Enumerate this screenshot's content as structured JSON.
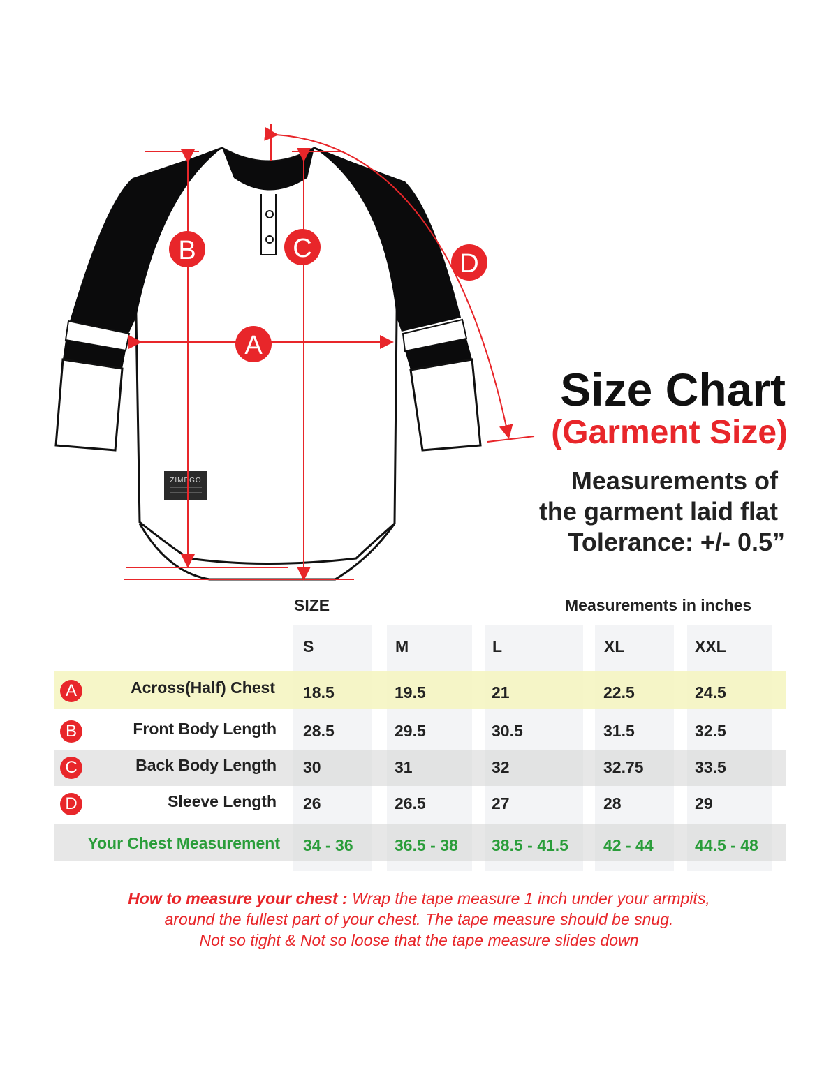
{
  "header": {
    "title": "Size Chart",
    "subtitle": "(Garment Size)",
    "notes": [
      "Measurements of",
      "the garment laid flat",
      "Tolerance: +/- 0.5”"
    ]
  },
  "diagram": {
    "labels": [
      "A",
      "B",
      "C",
      "D"
    ],
    "brand_tag": "ZIMEGO",
    "arrow_color": "#e8262a"
  },
  "table": {
    "size_label": "SIZE",
    "unit_label": "Measurements in inches",
    "sizes": [
      "S",
      "M",
      "L",
      "XL",
      "XXL"
    ],
    "rows": [
      {
        "badge": "A",
        "label": "Across(Half) Chest",
        "values": [
          "18.5",
          "19.5",
          "21",
          "22.5",
          "24.5"
        ]
      },
      {
        "badge": "B",
        "label": "Front Body Length",
        "values": [
          "28.5",
          "29.5",
          "30.5",
          "31.5",
          "32.5"
        ]
      },
      {
        "badge": "C",
        "label": "Back Body Length",
        "values": [
          "30",
          "31",
          "32",
          "32.75",
          "33.5"
        ]
      },
      {
        "badge": "D",
        "label": "Sleeve Length",
        "values": [
          "26",
          "26.5",
          "27",
          "28",
          "29"
        ]
      }
    ],
    "chest": {
      "label": "Your Chest Measurement",
      "values": [
        "34 - 36",
        "36.5 - 38",
        "38.5 - 41.5",
        "42 - 44",
        "44.5 - 48"
      ]
    }
  },
  "howto": {
    "lead": "How to measure your chest :",
    "lines": [
      " Wrap the tape measure 1 inch under your armpits,",
      "around the fullest part of your chest. The tape measure should be snug.",
      "Not so tight & Not so loose that the tape measure slides down"
    ]
  },
  "colors": {
    "accent": "#e8262a",
    "green": "#2a9d3a",
    "highlight": "#f4f5c8"
  }
}
